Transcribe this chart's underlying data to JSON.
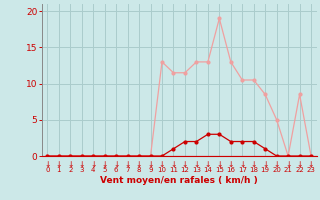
{
  "x": [
    0,
    1,
    2,
    3,
    4,
    5,
    6,
    7,
    8,
    9,
    10,
    11,
    12,
    13,
    14,
    15,
    16,
    17,
    18,
    19,
    20,
    21,
    22,
    23
  ],
  "y_rafales": [
    0,
    0,
    0,
    0,
    0,
    0,
    0,
    0,
    0,
    0,
    13,
    11.5,
    11.5,
    13,
    13,
    19,
    13,
    10.5,
    10.5,
    8.5,
    5,
    0,
    8.5,
    0
  ],
  "y_moyen": [
    0,
    0,
    0,
    0,
    0,
    0,
    0,
    0,
    0,
    0,
    0,
    1,
    2,
    2,
    3,
    3,
    2,
    2,
    2,
    1,
    0,
    0,
    0,
    0
  ],
  "bg_color": "#cce8e8",
  "grid_color": "#aacccc",
  "rafales_color": "#f0a0a0",
  "moyen_color": "#cc0000",
  "xlabel": "Vent moyen/en rafales ( km/h )",
  "xlabel_color": "#cc0000",
  "tick_color": "#cc0000",
  "arrow_color": "#cc0000",
  "ylim": [
    0,
    21
  ],
  "yticks": [
    0,
    5,
    10,
    15,
    20
  ],
  "xlim": [
    -0.5,
    23.5
  ]
}
